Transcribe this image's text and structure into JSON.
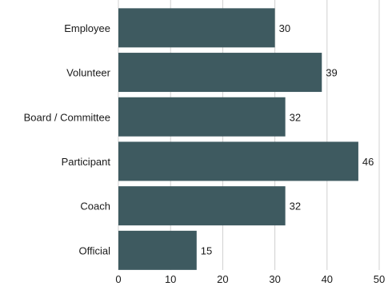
{
  "chart_data": {
    "type": "bar",
    "orientation": "horizontal",
    "categories": [
      "Employee",
      "Volunteer",
      "Board / Committee",
      "Participant",
      "Coach",
      "Official"
    ],
    "values": [
      30,
      39,
      32,
      46,
      32,
      15
    ],
    "xlim": [
      0,
      50
    ],
    "xticks": [
      0,
      10,
      20,
      30,
      40,
      50
    ],
    "grid": "vertical",
    "bar_color": "#3e5a60",
    "title": "",
    "xlabel": "",
    "ylabel": ""
  }
}
